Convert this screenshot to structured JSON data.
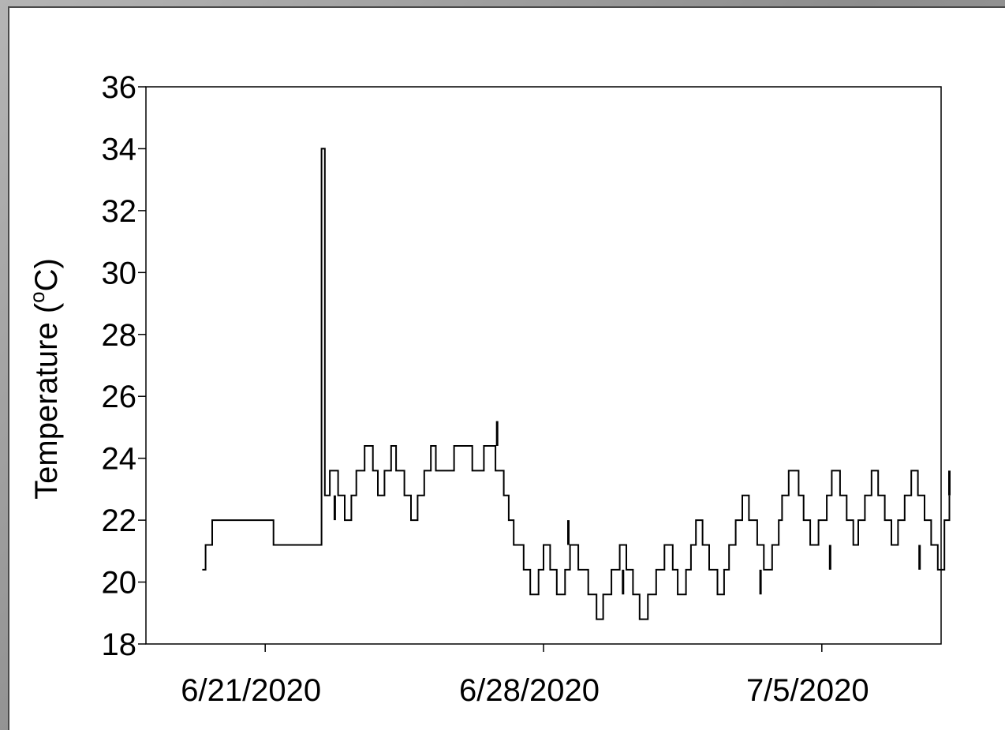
{
  "chart_data": {
    "type": "line",
    "title": "",
    "xlabel": "",
    "ylabel": "Temperature (°C)",
    "ylabel_parts": {
      "main": "Temperature (",
      "degree": "o",
      "unit": "C)"
    },
    "ylim": [
      18,
      36
    ],
    "y_ticks": [
      "18",
      "20",
      "22",
      "24",
      "26",
      "28",
      "30",
      "32",
      "34",
      "36"
    ],
    "xlim": [
      "2020-06-18",
      "2020-07-08"
    ],
    "x_ticks": [
      {
        "date": "2020-06-21",
        "label": "6/21/2020"
      },
      {
        "date": "2020-06-28",
        "label": "6/28/2020"
      },
      {
        "date": "2020-07-05",
        "label": "7/5/2020"
      }
    ],
    "grid": false,
    "line_color": "#000000",
    "series": [
      {
        "x": [
          "2020-06-19 10:00",
          "2020-06-19 12:00",
          "2020-06-19 16:00",
          "2020-06-21 00:00",
          "2020-06-21 05:00",
          "2020-06-22 10:00",
          "2020-06-22 12:00",
          "2020-06-22 15:00",
          "2020-06-22 20:00",
          "2020-06-23 00:00",
          "2020-06-23 04:00",
          "2020-06-23 07:00",
          "2020-06-23 12:00",
          "2020-06-23 17:00",
          "2020-06-23 20:00",
          "2020-06-24 00:00",
          "2020-06-24 04:00",
          "2020-06-24 07:00",
          "2020-06-24 12:00",
          "2020-06-24 16:00",
          "2020-06-24 20:00",
          "2020-06-25 00:00",
          "2020-06-25 04:00",
          "2020-06-25 05:00",
          "2020-06-25 07:00",
          "2020-06-25 10:00",
          "2020-06-25 18:00",
          "2020-06-26 02:00",
          "2020-06-26 05:00",
          "2020-06-26 12:00",
          "2020-06-26 19:00",
          "2020-06-27 00:00",
          "2020-06-27 03:00",
          "2020-06-27 06:00",
          "2020-06-27 09:00",
          "2020-06-27 12:00",
          "2020-06-27 16:00",
          "2020-06-27 21:00",
          "2020-06-28 00:00",
          "2020-06-28 04:00",
          "2020-06-28 08:00",
          "2020-06-28 13:00",
          "2020-06-28 16:00",
          "2020-06-28 21:00",
          "2020-06-29 03:00",
          "2020-06-29 08:00",
          "2020-06-29 12:00",
          "2020-06-29 17:00",
          "2020-06-29 22:00",
          "2020-06-30 02:00",
          "2020-06-30 06:00",
          "2020-06-30 10:00",
          "2020-06-30 15:00",
          "2020-06-30 20:00",
          "2020-07-01 01:00",
          "2020-07-01 06:00",
          "2020-07-01 09:00",
          "2020-07-01 14:00",
          "2020-07-01 17:00",
          "2020-07-01 20:00",
          "2020-07-02 00:00",
          "2020-07-02 04:00",
          "2020-07-02 09:00",
          "2020-07-02 13:00",
          "2020-07-02 16:00",
          "2020-07-02 20:00",
          "2020-07-03 00:00",
          "2020-07-03 04:00",
          "2020-07-03 09:00",
          "2020-07-03 13:00",
          "2020-07-03 18:00",
          "2020-07-03 22:00",
          "2020-07-04 00:00",
          "2020-07-04 04:00",
          "2020-07-04 10:00",
          "2020-07-04 13:00",
          "2020-07-04 17:00",
          "2020-07-04 22:00",
          "2020-07-05 03:00",
          "2020-07-05 06:00",
          "2020-07-05 11:00",
          "2020-07-05 15:00",
          "2020-07-05 19:00",
          "2020-07-05 22:00",
          "2020-07-06 02:00",
          "2020-07-06 06:00",
          "2020-07-06 10:00",
          "2020-07-06 14:00",
          "2020-07-06 18:00",
          "2020-07-06 22:00",
          "2020-07-07 02:00",
          "2020-07-07 06:00",
          "2020-07-07 10:00",
          "2020-07-07 14:00",
          "2020-07-07 18:00",
          "2020-07-07 22:00",
          "2020-07-08 02:00",
          "2020-07-08 05:00"
        ],
        "y": [
          20.4,
          21.2,
          22,
          22,
          21.2,
          34,
          22.8,
          23.6,
          22.8,
          22,
          22.8,
          23.6,
          24.4,
          23.6,
          22.8,
          23.6,
          24.4,
          23.6,
          22.8,
          22,
          22.8,
          23.6,
          24.4,
          24.4,
          23.6,
          23.6,
          24.4,
          24.4,
          23.6,
          24.4,
          23.6,
          22.8,
          22,
          21.2,
          21.2,
          20.4,
          19.6,
          20.4,
          21.2,
          20.4,
          19.6,
          20.4,
          21.2,
          20.4,
          19.6,
          18.8,
          19.6,
          20.4,
          21.2,
          20.4,
          19.6,
          18.8,
          19.6,
          20.4,
          21.2,
          20.4,
          19.6,
          20.4,
          21.2,
          22,
          21.2,
          20.4,
          19.6,
          20.4,
          21.2,
          22,
          22.8,
          22,
          21.2,
          20.4,
          21.2,
          22,
          22.8,
          23.6,
          22.8,
          22,
          21.2,
          22,
          22.8,
          23.6,
          22.8,
          22,
          21.2,
          22,
          22.8,
          23.6,
          22.8,
          22,
          21.2,
          22,
          22.8,
          23.6,
          22.8,
          22,
          21.2,
          20.4,
          22,
          22.8
        ]
      }
    ],
    "spikes": [
      {
        "x": "2020-06-22 18:00",
        "from": 22,
        "to": 22.8
      },
      {
        "x": "2020-06-26 20:00",
        "from": 24.4,
        "to": 25.2
      },
      {
        "x": "2020-06-28 15:00",
        "from": 21.2,
        "to": 22
      },
      {
        "x": "2020-06-30 00:00",
        "from": 19.6,
        "to": 20.4
      },
      {
        "x": "2020-07-03 11:00",
        "from": 19.6,
        "to": 20.4
      },
      {
        "x": "2020-07-05 05:00",
        "from": 20.4,
        "to": 21.2
      },
      {
        "x": "2020-07-07 11:00",
        "from": 20.4,
        "to": 21.2
      },
      {
        "x": "2020-07-08 05:00",
        "from": 22.8,
        "to": 23.6
      }
    ]
  }
}
